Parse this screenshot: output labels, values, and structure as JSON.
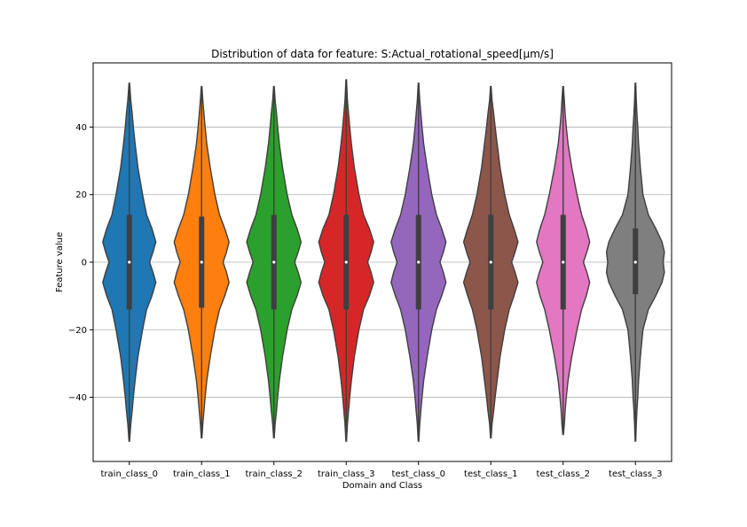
{
  "chart_data": {
    "type": "violin",
    "title": "Distribution of data for feature: S:Actual_rotational_speed[µm/s]",
    "xlabel": "Domain and Class",
    "ylabel": "Feature value",
    "ylim": [
      -59,
      59
    ],
    "yticks": [
      -40,
      -20,
      0,
      20,
      40
    ],
    "grid": "horizontal",
    "categories": [
      "train_class_0",
      "train_class_1",
      "train_class_2",
      "train_class_3",
      "test_class_0",
      "test_class_1",
      "test_class_2",
      "test_class_3"
    ],
    "series": [
      {
        "category": "train_class_0",
        "color": "#1f77b4",
        "min": -53,
        "max": 53,
        "q1": -14,
        "median": 0,
        "q3": 14,
        "profile": [
          [
            -53,
            0.01
          ],
          [
            -48,
            0.05
          ],
          [
            -44,
            0.1
          ],
          [
            -40,
            0.14
          ],
          [
            -35,
            0.2
          ],
          [
            -28,
            0.3
          ],
          [
            -20,
            0.46
          ],
          [
            -14,
            0.6
          ],
          [
            -10,
            0.78
          ],
          [
            -6,
            0.92
          ],
          [
            -3,
            0.82
          ],
          [
            0,
            0.7
          ],
          [
            3,
            0.82
          ],
          [
            6,
            0.92
          ],
          [
            10,
            0.78
          ],
          [
            14,
            0.6
          ],
          [
            20,
            0.46
          ],
          [
            28,
            0.3
          ],
          [
            35,
            0.2
          ],
          [
            40,
            0.14
          ],
          [
            44,
            0.1
          ],
          [
            48,
            0.05
          ],
          [
            53,
            0.01
          ]
        ]
      },
      {
        "category": "train_class_1",
        "color": "#ff7f0e",
        "min": -52,
        "max": 52,
        "q1": -13.5,
        "median": 0,
        "q3": 13.5,
        "profile": [
          [
            -52,
            0.01
          ],
          [
            -48,
            0.04
          ],
          [
            -44,
            0.08
          ],
          [
            -40,
            0.12
          ],
          [
            -35,
            0.18
          ],
          [
            -28,
            0.3
          ],
          [
            -20,
            0.46
          ],
          [
            -14,
            0.62
          ],
          [
            -10,
            0.8
          ],
          [
            -6,
            0.95
          ],
          [
            -3,
            0.86
          ],
          [
            0,
            0.74
          ],
          [
            3,
            0.86
          ],
          [
            6,
            0.95
          ],
          [
            10,
            0.8
          ],
          [
            14,
            0.62
          ],
          [
            20,
            0.46
          ],
          [
            28,
            0.3
          ],
          [
            35,
            0.18
          ],
          [
            40,
            0.12
          ],
          [
            44,
            0.08
          ],
          [
            48,
            0.04
          ],
          [
            52,
            0.01
          ]
        ]
      },
      {
        "category": "train_class_2",
        "color": "#2ca02c",
        "min": -52,
        "max": 52,
        "q1": -14,
        "median": 0,
        "q3": 14,
        "profile": [
          [
            -52,
            0.01
          ],
          [
            -48,
            0.04
          ],
          [
            -44,
            0.09
          ],
          [
            -40,
            0.13
          ],
          [
            -35,
            0.19
          ],
          [
            -28,
            0.3
          ],
          [
            -20,
            0.46
          ],
          [
            -14,
            0.62
          ],
          [
            -10,
            0.8
          ],
          [
            -6,
            0.94
          ],
          [
            -3,
            0.84
          ],
          [
            0,
            0.72
          ],
          [
            3,
            0.84
          ],
          [
            6,
            0.94
          ],
          [
            10,
            0.8
          ],
          [
            14,
            0.62
          ],
          [
            20,
            0.46
          ],
          [
            28,
            0.3
          ],
          [
            35,
            0.19
          ],
          [
            40,
            0.13
          ],
          [
            44,
            0.09
          ],
          [
            48,
            0.04
          ],
          [
            52,
            0.01
          ]
        ]
      },
      {
        "category": "train_class_3",
        "color": "#d62728",
        "min": -53,
        "max": 54,
        "q1": -14,
        "median": 0,
        "q3": 14,
        "profile": [
          [
            -53,
            0.01
          ],
          [
            -48,
            0.04
          ],
          [
            -44,
            0.08
          ],
          [
            -40,
            0.12
          ],
          [
            -35,
            0.18
          ],
          [
            -28,
            0.28
          ],
          [
            -20,
            0.44
          ],
          [
            -14,
            0.6
          ],
          [
            -10,
            0.8
          ],
          [
            -6,
            0.95
          ],
          [
            -3,
            0.86
          ],
          [
            0,
            0.74
          ],
          [
            3,
            0.86
          ],
          [
            6,
            0.95
          ],
          [
            10,
            0.8
          ],
          [
            14,
            0.6
          ],
          [
            20,
            0.44
          ],
          [
            28,
            0.28
          ],
          [
            35,
            0.18
          ],
          [
            40,
            0.12
          ],
          [
            44,
            0.08
          ],
          [
            48,
            0.04
          ],
          [
            54,
            0.01
          ]
        ]
      },
      {
        "category": "test_class_0",
        "color": "#9467bd",
        "min": -53,
        "max": 53,
        "q1": -14,
        "median": 0,
        "q3": 14,
        "profile": [
          [
            -53,
            0.01
          ],
          [
            -48,
            0.04
          ],
          [
            -44,
            0.08
          ],
          [
            -40,
            0.12
          ],
          [
            -35,
            0.18
          ],
          [
            -28,
            0.3
          ],
          [
            -20,
            0.46
          ],
          [
            -14,
            0.62
          ],
          [
            -10,
            0.8
          ],
          [
            -6,
            0.95
          ],
          [
            -3,
            0.86
          ],
          [
            0,
            0.74
          ],
          [
            3,
            0.86
          ],
          [
            6,
            0.95
          ],
          [
            10,
            0.8
          ],
          [
            14,
            0.62
          ],
          [
            20,
            0.46
          ],
          [
            28,
            0.3
          ],
          [
            35,
            0.18
          ],
          [
            40,
            0.12
          ],
          [
            44,
            0.08
          ],
          [
            48,
            0.04
          ],
          [
            53,
            0.01
          ]
        ]
      },
      {
        "category": "test_class_1",
        "color": "#8c564b",
        "min": -52,
        "max": 52,
        "q1": -14,
        "median": 0,
        "q3": 14,
        "profile": [
          [
            -52,
            0.01
          ],
          [
            -48,
            0.04
          ],
          [
            -44,
            0.1
          ],
          [
            -40,
            0.15
          ],
          [
            -35,
            0.22
          ],
          [
            -28,
            0.32
          ],
          [
            -20,
            0.48
          ],
          [
            -14,
            0.64
          ],
          [
            -10,
            0.8
          ],
          [
            -6,
            0.94
          ],
          [
            -3,
            0.84
          ],
          [
            0,
            0.72
          ],
          [
            3,
            0.84
          ],
          [
            6,
            0.94
          ],
          [
            10,
            0.8
          ],
          [
            14,
            0.64
          ],
          [
            20,
            0.48
          ],
          [
            28,
            0.32
          ],
          [
            35,
            0.22
          ],
          [
            40,
            0.15
          ],
          [
            44,
            0.1
          ],
          [
            48,
            0.04
          ],
          [
            52,
            0.01
          ]
        ]
      },
      {
        "category": "test_class_2",
        "color": "#e377c2",
        "min": -51,
        "max": 52,
        "q1": -14,
        "median": 0,
        "q3": 14,
        "profile": [
          [
            -51,
            0.01
          ],
          [
            -48,
            0.04
          ],
          [
            -44,
            0.07
          ],
          [
            -40,
            0.11
          ],
          [
            -35,
            0.17
          ],
          [
            -28,
            0.3
          ],
          [
            -20,
            0.48
          ],
          [
            -14,
            0.64
          ],
          [
            -10,
            0.8
          ],
          [
            -6,
            0.92
          ],
          [
            -3,
            0.82
          ],
          [
            0,
            0.7
          ],
          [
            3,
            0.82
          ],
          [
            6,
            0.92
          ],
          [
            10,
            0.8
          ],
          [
            14,
            0.64
          ],
          [
            20,
            0.48
          ],
          [
            28,
            0.3
          ],
          [
            35,
            0.17
          ],
          [
            40,
            0.11
          ],
          [
            44,
            0.07
          ],
          [
            48,
            0.04
          ],
          [
            52,
            0.01
          ]
        ]
      },
      {
        "category": "test_class_3",
        "color": "#7f7f7f",
        "min": -53,
        "max": 53,
        "q1": -9.5,
        "median": 0,
        "q3": 10,
        "profile": [
          [
            -53,
            0.01
          ],
          [
            -48,
            0.03
          ],
          [
            -44,
            0.05
          ],
          [
            -40,
            0.08
          ],
          [
            -35,
            0.11
          ],
          [
            -28,
            0.17
          ],
          [
            -20,
            0.26
          ],
          [
            -14,
            0.45
          ],
          [
            -10,
            0.7
          ],
          [
            -6,
            0.92
          ],
          [
            -3,
            1.0
          ],
          [
            0,
            0.96
          ],
          [
            3,
            1.0
          ],
          [
            6,
            0.92
          ],
          [
            10,
            0.7
          ],
          [
            14,
            0.45
          ],
          [
            20,
            0.26
          ],
          [
            28,
            0.17
          ],
          [
            35,
            0.11
          ],
          [
            40,
            0.08
          ],
          [
            44,
            0.05
          ],
          [
            48,
            0.03
          ],
          [
            53,
            0.01
          ]
        ]
      }
    ]
  }
}
